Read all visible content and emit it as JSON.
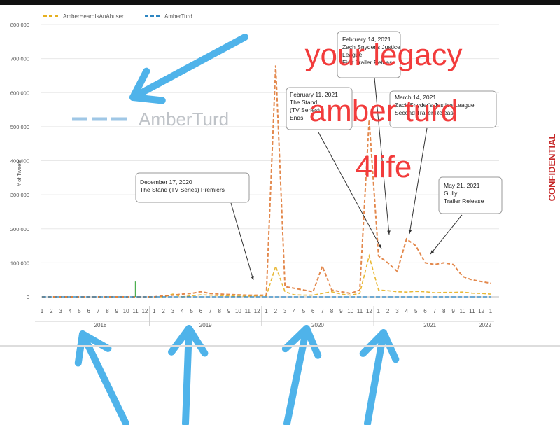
{
  "chart_data": {
    "type": "line",
    "ylabel": "# of Tweets",
    "ylim": [
      0,
      800000
    ],
    "y_ticks": [
      "800,000",
      "700,000",
      "600,000",
      "500,000",
      "400,000",
      "300,000",
      "200,000",
      "100,000",
      "0"
    ],
    "y_tick_values": [
      800000,
      700000,
      600000,
      500000,
      400000,
      300000,
      200000,
      100000,
      0
    ],
    "years": [
      "2018",
      "2019",
      "2020",
      "2021",
      "2022"
    ],
    "month_labels": [
      "1",
      "2",
      "3",
      "4",
      "5",
      "6",
      "7",
      "8",
      "9",
      "10",
      "11",
      "12",
      "1",
      "2",
      "3",
      "4",
      "5",
      "6",
      "7",
      "8",
      "9",
      "10",
      "11",
      "12",
      "1",
      "2",
      "3",
      "4",
      "5",
      "6",
      "7",
      "8",
      "9",
      "10",
      "11",
      "12",
      "1",
      "2",
      "3",
      "4",
      "5",
      "6",
      "7",
      "8",
      "9",
      "10",
      "11",
      "12",
      "1"
    ],
    "legend_position": "top-left",
    "series": [
      {
        "name": "AmberHeardIsAnAbuser",
        "color": "#e6b020",
        "values": [
          0,
          0,
          0,
          0,
          0,
          0,
          0,
          0,
          0,
          0,
          0,
          0,
          0,
          0,
          8000,
          0,
          3000,
          6000,
          5000,
          4000,
          3000,
          2000,
          2000,
          3000,
          3000,
          90000,
          15000,
          6000,
          5000,
          5000,
          10000,
          15000,
          8000,
          5000,
          10000,
          120000,
          20000,
          18000,
          15000,
          14000,
          16000,
          15000,
          12000,
          13000,
          13000,
          14000,
          11000,
          10000,
          8000
        ]
      },
      {
        "name": "",
        "color": "#e07b39",
        "values": [
          0,
          0,
          0,
          0,
          0,
          0,
          0,
          0,
          0,
          0,
          0,
          0,
          0,
          3000,
          5000,
          8000,
          10000,
          15000,
          10000,
          8000,
          7000,
          6000,
          5000,
          5000,
          5000,
          680000,
          30000,
          25000,
          20000,
          15000,
          90000,
          20000,
          15000,
          10000,
          20000,
          520000,
          120000,
          100000,
          75000,
          170000,
          150000,
          100000,
          95000,
          100000,
          95000,
          60000,
          50000,
          45000,
          40000
        ]
      },
      {
        "name": "AmberTurd",
        "color": "#2e86c1",
        "values": [
          0,
          0,
          0,
          0,
          0,
          0,
          0,
          0,
          0,
          0,
          0,
          0,
          0,
          0,
          0,
          0,
          0,
          0,
          0,
          0,
          0,
          0,
          0,
          0,
          0,
          0,
          0,
          0,
          0,
          0,
          0,
          0,
          0,
          0,
          0,
          0,
          0,
          0,
          0,
          0,
          0,
          0,
          0,
          0,
          0,
          0,
          0,
          0,
          0
        ]
      },
      {
        "name": "",
        "color": "#4caf50",
        "values": [
          0,
          0,
          0,
          0,
          0,
          0,
          0,
          0,
          0,
          0,
          45000,
          0,
          0,
          0,
          0,
          0,
          0,
          0,
          0,
          0,
          0,
          0,
          0,
          0,
          0,
          0,
          0,
          0,
          0,
          0,
          0,
          0,
          0,
          0,
          0,
          0,
          0,
          0,
          0,
          0,
          0,
          0,
          0,
          0,
          0,
          0,
          0,
          0,
          0
        ]
      }
    ],
    "annotations": [
      {
        "lines": [
          "December 17, 2020",
          "The Stand (TV Series) Premiers"
        ]
      },
      {
        "lines": [
          "February 11, 2021",
          "The Stand",
          "(TV Series)",
          "Ends"
        ]
      },
      {
        "lines": [
          "February 14, 2021",
          "Zach Snyder's Justice",
          "League",
          "First Trailer Release"
        ]
      },
      {
        "lines": [
          "March 14, 2021",
          "Zach Snyder's Justice League",
          "Second Trailer Release"
        ]
      },
      {
        "lines": [
          "May 21, 2021",
          "Gully",
          "Trailer Release"
        ]
      }
    ]
  },
  "big_legend_label": "AmberTurd",
  "side_label": "CONFIDENTIAL",
  "overlay_text": [
    "your legacy",
    "amber turd",
    "4life"
  ]
}
